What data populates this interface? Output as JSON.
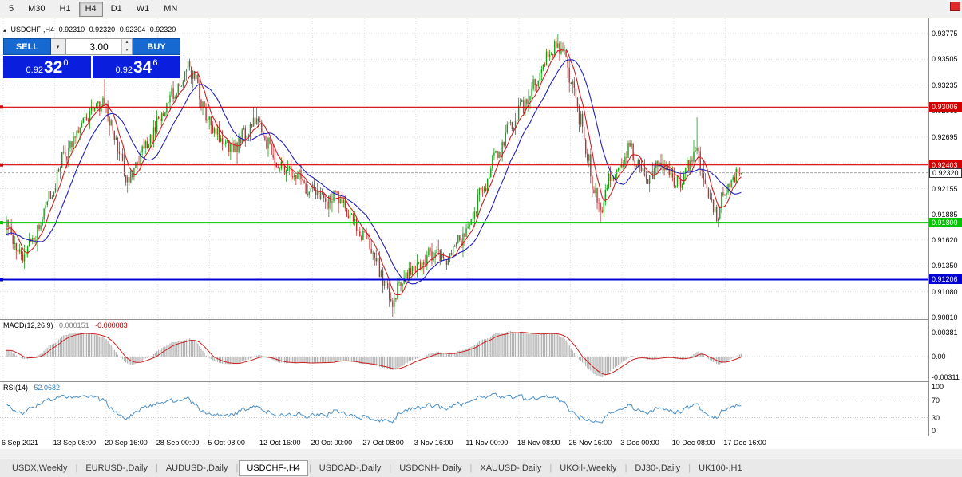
{
  "toolbar": {
    "timeframes": [
      "5",
      "M30",
      "H1",
      "H4",
      "D1",
      "W1",
      "MN"
    ],
    "active": "H4"
  },
  "info_line": {
    "symbol": "USDCHF-,H4",
    "open": "0.92310",
    "high": "0.92320",
    "low": "0.92304",
    "close": "0.92320"
  },
  "trade_panel": {
    "sell_label": "SELL",
    "buy_label": "BUY",
    "volume": "3.00",
    "sell_quote": {
      "prefix": "0.92",
      "big": "32",
      "sup": "0"
    },
    "buy_quote": {
      "prefix": "0.92",
      "big": "34",
      "sup": "6"
    }
  },
  "price_axis": {
    "labels": [
      "0.93775",
      "0.93505",
      "0.93235",
      "0.92965",
      "0.92695",
      "0.92425",
      "0.92155",
      "0.91885",
      "0.91620",
      "0.91350",
      "0.91080",
      "0.90810"
    ]
  },
  "hlines": [
    {
      "price": 0.93006,
      "label": "0.93006",
      "color": "#d40000",
      "thickness": 1.2
    },
    {
      "price": 0.92403,
      "label": "0.92403",
      "color": "#d40000",
      "thickness": 1.2
    },
    {
      "price": 0.918,
      "label": "0.91800",
      "color": "#00c400",
      "thickness": 2
    },
    {
      "price": 0.91206,
      "label": "0.91206",
      "color": "#0000d4",
      "thickness": 2
    }
  ],
  "bid": {
    "price": 0.9232,
    "label": "0.92320"
  },
  "macd": {
    "title": "MACD(12,26,9)",
    "value_main": "0.000151",
    "value_signal": "-0.000083",
    "axis": [
      "0.00381",
      "0.00",
      "-0.00311"
    ],
    "hist_color": "#b4b4b4",
    "signal_color": "#c82020"
  },
  "rsi": {
    "title": "RSI(14)",
    "value": "52.0682",
    "axis": [
      "100",
      "70",
      "30",
      "0"
    ],
    "levels": [
      70,
      30
    ],
    "color": "#4a90c8"
  },
  "time_axis": {
    "labels": [
      "6 Sep 2021",
      "13 Sep 08:00",
      "20 Sep 16:00",
      "28 Sep 00:00",
      "5 Oct 08:00",
      "12 Oct 16:00",
      "20 Oct 00:00",
      "27 Oct 08:00",
      "3 Nov 16:00",
      "11 Nov 00:00",
      "18 Nov 08:00",
      "25 Nov 16:00",
      "3 Dec 00:00",
      "10 Dec 08:00",
      "17 Dec 16:00"
    ]
  },
  "tabs": {
    "items": [
      "USDX,Weekly",
      "EURUSD-,Daily",
      "AUDUSD-,Daily",
      "USDCHF-,H4",
      "USDCAD-,Daily",
      "USDCNH-,Daily",
      "XAUUSD-,Daily",
      "UKOil-,Weekly",
      "DJ30-,Daily",
      "UK100-,H1"
    ],
    "active_index": 3
  },
  "chart_data": {
    "type": "candlestick",
    "symbol": "USDCHF-",
    "timeframe": "H4",
    "title": "USDCHF-,H4",
    "ohlc_current": {
      "open": 0.9231,
      "high": 0.9232,
      "low": 0.92304,
      "close": 0.9232
    },
    "bid": 0.9232,
    "ask": 0.92346,
    "y_axis_range": [
      0.9081,
      0.93775
    ],
    "x_axis_start": "6 Sep 2021",
    "x_axis_end": "17 Dec 16:00",
    "num_candles": 450,
    "horizontal_levels": [
      0.93006,
      0.92403,
      0.918,
      0.91206
    ],
    "colors": {
      "up": "#1a9e1a",
      "down": "#c03030",
      "ma_fast": "#cc2020",
      "ma_slow": "#2020bb"
    },
    "indicators": [
      {
        "name": "MACD",
        "params": [
          12,
          26,
          9
        ],
        "values": [
          0.000151,
          -8.3e-05
        ]
      },
      {
        "name": "RSI",
        "params": [
          14
        ],
        "value": 52.0682
      }
    ],
    "close_anchors": [
      [
        -40,
        0.9135
      ],
      [
        -25,
        0.9152
      ],
      [
        -12,
        0.9168
      ],
      [
        0,
        0.9175
      ],
      [
        6,
        0.9152
      ],
      [
        10,
        0.914
      ],
      [
        16,
        0.9163
      ],
      [
        23,
        0.919
      ],
      [
        27,
        0.9212
      ],
      [
        35,
        0.9248
      ],
      [
        45,
        0.9282
      ],
      [
        54,
        0.93
      ],
      [
        60,
        0.9308
      ],
      [
        64,
        0.9282
      ],
      [
        69,
        0.9255
      ],
      [
        73,
        0.9225
      ],
      [
        79,
        0.9238
      ],
      [
        86,
        0.9262
      ],
      [
        96,
        0.9295
      ],
      [
        103,
        0.9318
      ],
      [
        111,
        0.9342
      ],
      [
        116,
        0.933
      ],
      [
        120,
        0.93
      ],
      [
        124,
        0.9285
      ],
      [
        130,
        0.927
      ],
      [
        138,
        0.9256
      ],
      [
        146,
        0.9272
      ],
      [
        153,
        0.9288
      ],
      [
        160,
        0.9262
      ],
      [
        167,
        0.924
      ],
      [
        177,
        0.923
      ],
      [
        186,
        0.9212
      ],
      [
        196,
        0.92
      ],
      [
        203,
        0.9208
      ],
      [
        211,
        0.9188
      ],
      [
        218,
        0.9165
      ],
      [
        225,
        0.9142
      ],
      [
        232,
        0.9112
      ],
      [
        236,
        0.9098
      ],
      [
        242,
        0.9122
      ],
      [
        250,
        0.9135
      ],
      [
        260,
        0.9148
      ],
      [
        268,
        0.9142
      ],
      [
        277,
        0.916
      ],
      [
        284,
        0.9185
      ],
      [
        291,
        0.9215
      ],
      [
        299,
        0.9248
      ],
      [
        308,
        0.928
      ],
      [
        316,
        0.9302
      ],
      [
        323,
        0.9328
      ],
      [
        332,
        0.9355
      ],
      [
        337,
        0.9365
      ],
      [
        341,
        0.9352
      ],
      [
        345,
        0.933
      ],
      [
        350,
        0.929
      ],
      [
        355,
        0.925
      ],
      [
        359,
        0.9215
      ],
      [
        363,
        0.9195
      ],
      [
        369,
        0.9228
      ],
      [
        376,
        0.9245
      ],
      [
        381,
        0.926
      ],
      [
        386,
        0.9238
      ],
      [
        392,
        0.9225
      ],
      [
        399,
        0.9245
      ],
      [
        405,
        0.923
      ],
      [
        411,
        0.9222
      ],
      [
        417,
        0.924
      ],
      [
        422,
        0.9262
      ],
      [
        425,
        0.9235
      ],
      [
        430,
        0.9205
      ],
      [
        434,
        0.9186
      ],
      [
        438,
        0.9208
      ],
      [
        443,
        0.9225
      ],
      [
        449,
        0.9232
      ]
    ],
    "wick_pins": [
      [
        60,
        0.933,
        null
      ],
      [
        111,
        0.9357,
        null
      ],
      [
        236,
        null,
        0.9086
      ],
      [
        337,
        0.9377,
        null
      ],
      [
        363,
        null,
        0.918
      ],
      [
        422,
        0.929,
        null
      ]
    ]
  }
}
